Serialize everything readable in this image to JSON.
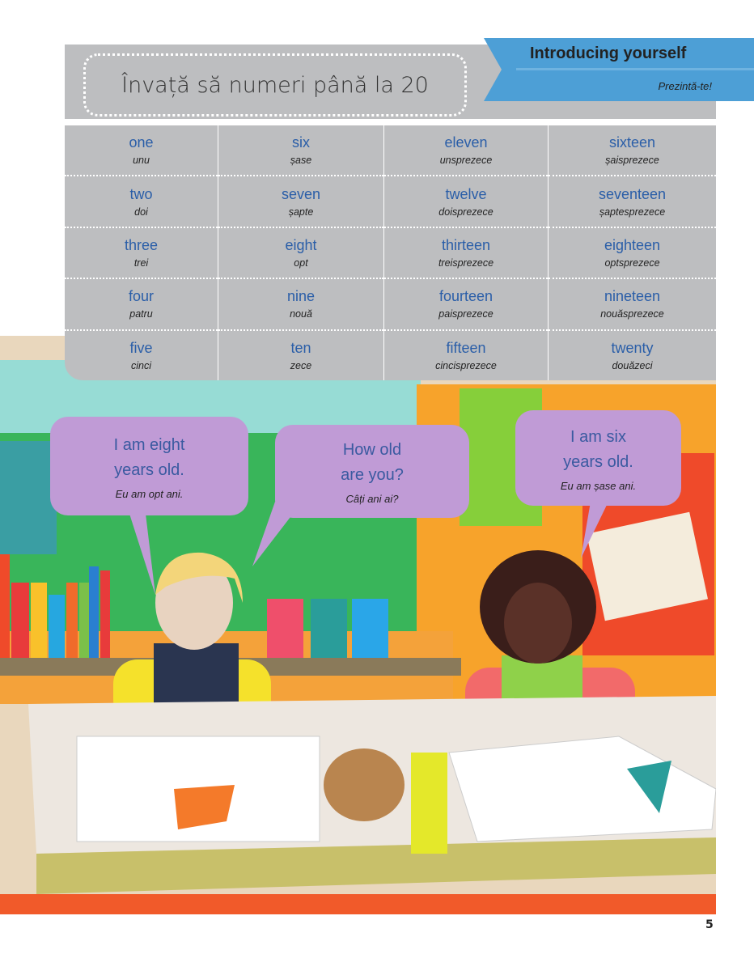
{
  "header": {
    "title": "Învață să numeri până la 20",
    "section_title": "Introducing yourself",
    "section_subtitle": "Prezintă-te!"
  },
  "numbers": [
    [
      {
        "en": "one",
        "ro": "unu"
      },
      {
        "en": "two",
        "ro": "doi"
      },
      {
        "en": "three",
        "ro": "trei"
      },
      {
        "en": "four",
        "ro": "patru"
      },
      {
        "en": "five",
        "ro": "cinci"
      }
    ],
    [
      {
        "en": "six",
        "ro": "șase"
      },
      {
        "en": "seven",
        "ro": "șapte"
      },
      {
        "en": "eight",
        "ro": "opt"
      },
      {
        "en": "nine",
        "ro": "nouă"
      },
      {
        "en": "ten",
        "ro": "zece"
      }
    ],
    [
      {
        "en": "eleven",
        "ro": "unsprezece"
      },
      {
        "en": "twelve",
        "ro": "doisprezece"
      },
      {
        "en": "thirteen",
        "ro": "treisprezece"
      },
      {
        "en": "fourteen",
        "ro": "paisprezece"
      },
      {
        "en": "fifteen",
        "ro": "cincisprezece"
      }
    ],
    [
      {
        "en": "sixteen",
        "ro": "șaisprezece"
      },
      {
        "en": "seventeen",
        "ro": "șaptesprezece"
      },
      {
        "en": "eighteen",
        "ro": "optsprezece"
      },
      {
        "en": "nineteen",
        "ro": "nouăsprezece"
      },
      {
        "en": "twenty",
        "ro": "douăzeci"
      }
    ]
  ],
  "bubbles": [
    {
      "en1": "I am eight",
      "en2": "years old.",
      "ro": "Eu am opt ani."
    },
    {
      "en1": "How old",
      "en2": "are you?",
      "ro": "Câți ani ai?"
    },
    {
      "en1": "I am six",
      "en2": "years old.",
      "ro": "Eu am șase ani."
    }
  ],
  "colors": {
    "accent_blue": "#4d9fd6",
    "table_grey": "#bdbec0",
    "bubble_purple": "#c09bd6",
    "text_blue": "#2a5ea8"
  },
  "page_number": "5"
}
